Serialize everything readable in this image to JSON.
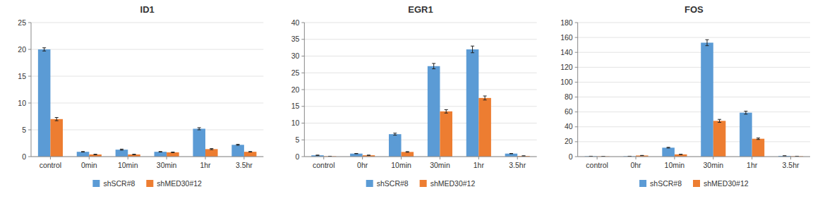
{
  "chart_data": [
    {
      "type": "bar",
      "title": "ID1",
      "categories": [
        "control",
        "0min",
        "10min",
        "30min",
        "1hr",
        "3.5hr"
      ],
      "series": [
        {
          "name": "shSCR#8",
          "color": "#5B9BD5",
          "values": [
            20.0,
            0.9,
            1.3,
            0.9,
            5.2,
            2.2
          ],
          "errors": [
            0.3,
            0.05,
            0.1,
            0.05,
            0.2,
            0.1
          ]
        },
        {
          "name": "shMED30#12",
          "color": "#ED7D31",
          "values": [
            7.0,
            0.4,
            0.4,
            0.8,
            1.4,
            0.9
          ],
          "errors": [
            0.3,
            0.05,
            0.05,
            0.05,
            0.1,
            0.05
          ]
        }
      ],
      "ylim": [
        0,
        25
      ],
      "yticks": [
        0,
        5,
        10,
        15,
        20,
        25
      ],
      "grid": true,
      "legend": "bottom"
    },
    {
      "type": "bar",
      "title": "EGR1",
      "categories": [
        "control",
        "0hr",
        "10min",
        "30min",
        "1hr",
        "3.5hr"
      ],
      "series": [
        {
          "name": "shSCR#8",
          "color": "#5B9BD5",
          "values": [
            0.4,
            0.9,
            6.7,
            27.0,
            32.0,
            0.9
          ],
          "errors": [
            0.05,
            0.05,
            0.3,
            0.8,
            1.0,
            0.05
          ]
        },
        {
          "name": "shMED30#12",
          "color": "#ED7D31",
          "values": [
            0.1,
            0.4,
            1.4,
            13.5,
            17.5,
            0.2
          ],
          "errors": [
            0.02,
            0.05,
            0.1,
            0.5,
            0.6,
            0.05
          ]
        }
      ],
      "ylim": [
        0,
        40
      ],
      "yticks": [
        0,
        5,
        10,
        15,
        20,
        25,
        30,
        35,
        40
      ],
      "grid": true,
      "legend": "bottom"
    },
    {
      "type": "bar",
      "title": "FOS",
      "categories": [
        "control",
        "0hr",
        "10min",
        "30min",
        "1hr",
        "3.5hr"
      ],
      "series": [
        {
          "name": "shSCR#8",
          "color": "#5B9BD5",
          "values": [
            0.5,
            0.5,
            12.0,
            153.0,
            59.0,
            1.0
          ],
          "errors": [
            0.05,
            0.05,
            0.5,
            4.0,
            2.0,
            0.05
          ]
        },
        {
          "name": "shMED30#12",
          "color": "#ED7D31",
          "values": [
            0.3,
            1.5,
            3.0,
            48.0,
            24.0,
            0.5
          ],
          "errors": [
            0.02,
            0.1,
            0.2,
            2.0,
            1.0,
            0.05
          ]
        }
      ],
      "ylim": [
        0,
        180
      ],
      "yticks": [
        0,
        20,
        40,
        60,
        80,
        100,
        120,
        140,
        160,
        180
      ],
      "grid": true,
      "legend": "bottom"
    }
  ]
}
